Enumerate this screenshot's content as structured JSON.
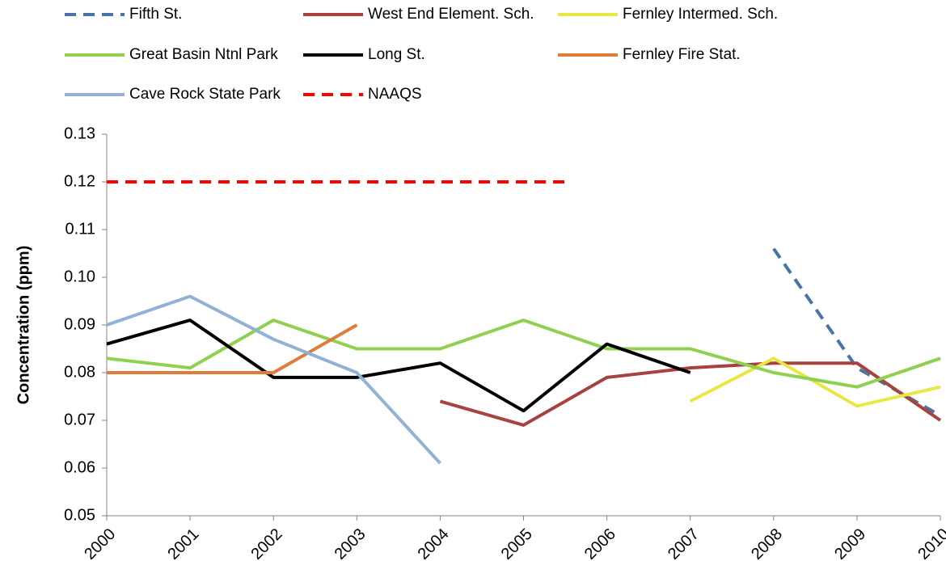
{
  "chart_data": {
    "type": "line",
    "y_label": "Concentration (ppm)",
    "x": [
      2000,
      2001,
      2002,
      2003,
      2004,
      2005,
      2006,
      2007,
      2008,
      2009,
      2010
    ],
    "xlim": [
      2000,
      2010
    ],
    "ylim": [
      0.05,
      0.13
    ],
    "yticks": [
      0.05,
      0.06,
      0.07,
      0.08,
      0.09,
      {
        "value": 0.1,
        "label": "0.10"
      },
      0.11,
      0.12,
      0.13
    ],
    "series": [
      {
        "name": "Fifth St.",
        "color": "#4a74a8",
        "dashed": true,
        "values": [
          null,
          null,
          null,
          null,
          null,
          null,
          null,
          null,
          0.106,
          0.081,
          0.071
        ]
      },
      {
        "name": "West End Element. Sch.",
        "color": "#a8423f",
        "dashed": false,
        "values": [
          null,
          null,
          null,
          null,
          0.074,
          0.069,
          0.079,
          0.081,
          0.082,
          0.082,
          0.07
        ]
      },
      {
        "name": "Fernley Intermed. Sch.",
        "color": "#e8e845",
        "dashed": false,
        "values": [
          null,
          null,
          null,
          null,
          null,
          null,
          null,
          0.074,
          0.083,
          0.073,
          0.077
        ]
      },
      {
        "name": "Great Basin Ntnl Park",
        "color": "#8fd04f",
        "dashed": false,
        "values": [
          0.083,
          0.081,
          0.091,
          0.085,
          0.085,
          0.091,
          0.085,
          0.085,
          0.08,
          0.077,
          0.083
        ]
      },
      {
        "name": "Long St.",
        "color": "#000000",
        "dashed": false,
        "values": [
          0.086,
          0.091,
          0.079,
          0.079,
          0.082,
          0.072,
          0.086,
          0.08,
          null,
          null,
          null
        ]
      },
      {
        "name": "Fernley Fire Stat.",
        "color": "#e07c3a",
        "dashed": false,
        "values": [
          0.08,
          0.08,
          0.08,
          0.09,
          null,
          null,
          null,
          null,
          null,
          null,
          null
        ]
      },
      {
        "name": "Cave Rock State Park",
        "color": "#93b1d6",
        "dashed": false,
        "values": [
          0.09,
          0.096,
          0.087,
          0.08,
          0.061,
          null,
          null,
          null,
          null,
          null,
          null
        ]
      },
      {
        "name": "NAAQS",
        "color": "#ff0000",
        "dashed": true,
        "x": [
          2000,
          2005.5
        ],
        "values": [
          0.12,
          0.12
        ]
      }
    ]
  }
}
